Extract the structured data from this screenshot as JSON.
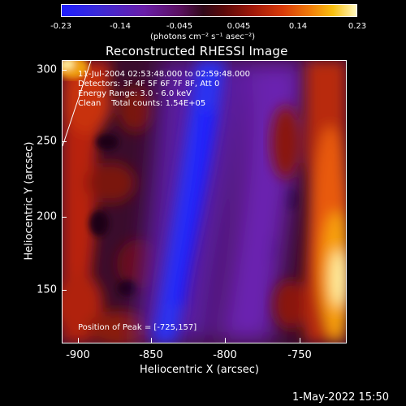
{
  "colorbar": {
    "ticks": [
      "-0.23",
      "-0.14",
      "-0.045",
      "0.045",
      "0.14",
      "0.23"
    ],
    "units": "(photons cm⁻² s⁻¹ asec⁻²)"
  },
  "title": "Reconstructed RHESSI Image",
  "info": {
    "line1": "11-Jul-2004 02:53:48.000 to 02:59:48.000",
    "line2": "Detectors: 3F 4F 5F 6F 7F 8F, Att 0",
    "line3": "Energy Range: 3.0 - 6.0 keV",
    "line4": "Clean    Total counts: 1.54E+05",
    "peak": "Position of Peak = [-725,157]"
  },
  "axes": {
    "xlabel": "Heliocentric X (arcsec)",
    "ylabel": "Heliocentric Y (arcsec)",
    "xticks": [
      "-900",
      "-850",
      "-800",
      "-750"
    ],
    "yticks": [
      "300",
      "250",
      "200",
      "150"
    ]
  },
  "footer": {
    "timestamp": "1-May-2022 15:50"
  },
  "colors": {
    "background": "#000000",
    "text": "#ffffff"
  }
}
